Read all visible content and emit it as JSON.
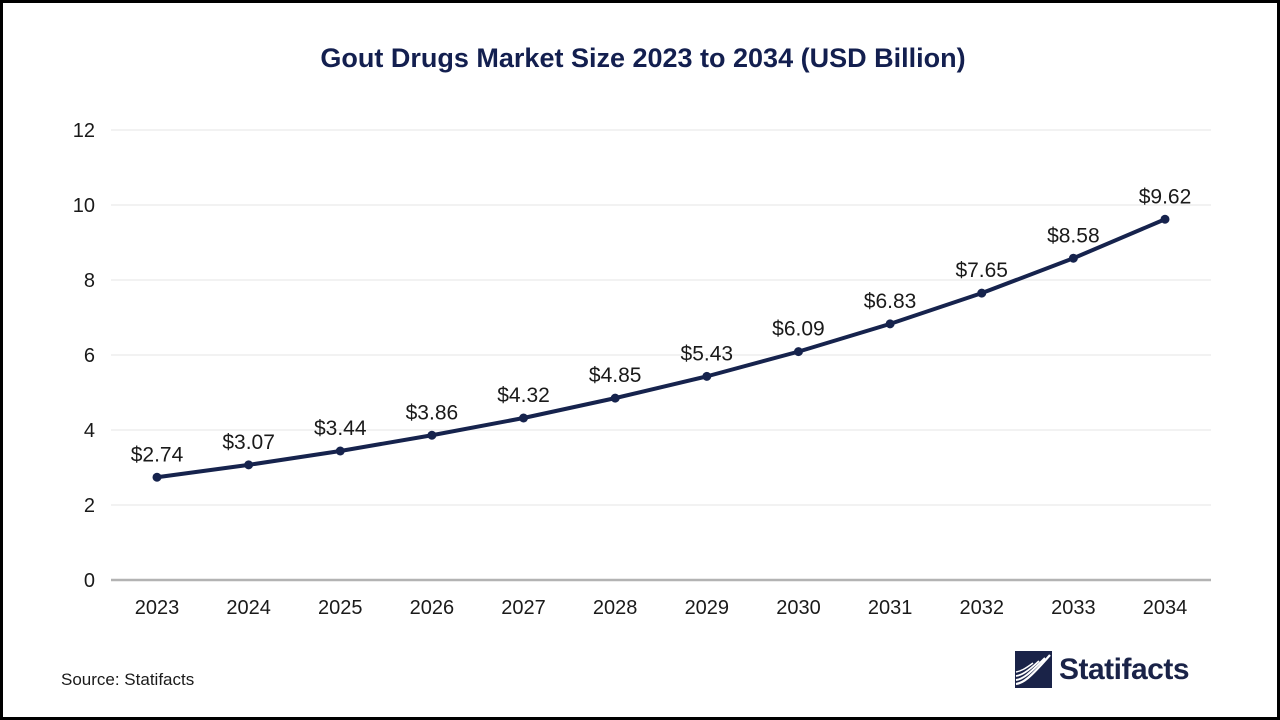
{
  "title": "Gout Drugs Market Size 2023 to 2034 (USD Billion)",
  "source": "Source: Statifacts",
  "brand": {
    "name": "Statifacts",
    "icon": "statifacts-waves-logo-icon"
  },
  "colors": {
    "line": "#16234d",
    "point": "#16234d",
    "title": "#131f4f",
    "grid": "#e9e9e9",
    "axis_baseline": "#b3b3b3",
    "tick_label": "#1a1a1a",
    "data_label": "#1a1a1a",
    "brand": "#1a2348"
  },
  "chart_data": {
    "type": "line",
    "title": "Gout Drugs Market Size 2023 to 2034 (USD Billion)",
    "categories": [
      "2023",
      "2024",
      "2025",
      "2026",
      "2027",
      "2028",
      "2029",
      "2030",
      "2031",
      "2032",
      "2033",
      "2034"
    ],
    "values": [
      2.74,
      3.07,
      3.44,
      3.86,
      4.32,
      4.85,
      5.43,
      6.09,
      6.83,
      7.65,
      8.58,
      9.62
    ],
    "value_labels": [
      "$2.74",
      "$3.07",
      "$3.44",
      "$3.86",
      "$4.32",
      "$4.85",
      "$5.43",
      "$6.09",
      "$6.83",
      "$7.65",
      "$8.58",
      "$9.62"
    ],
    "xlabel": "",
    "ylabel": "",
    "ylim": [
      0,
      12
    ],
    "yticks": [
      0,
      2,
      4,
      6,
      8,
      10,
      12
    ],
    "grid": true,
    "legend": false
  }
}
